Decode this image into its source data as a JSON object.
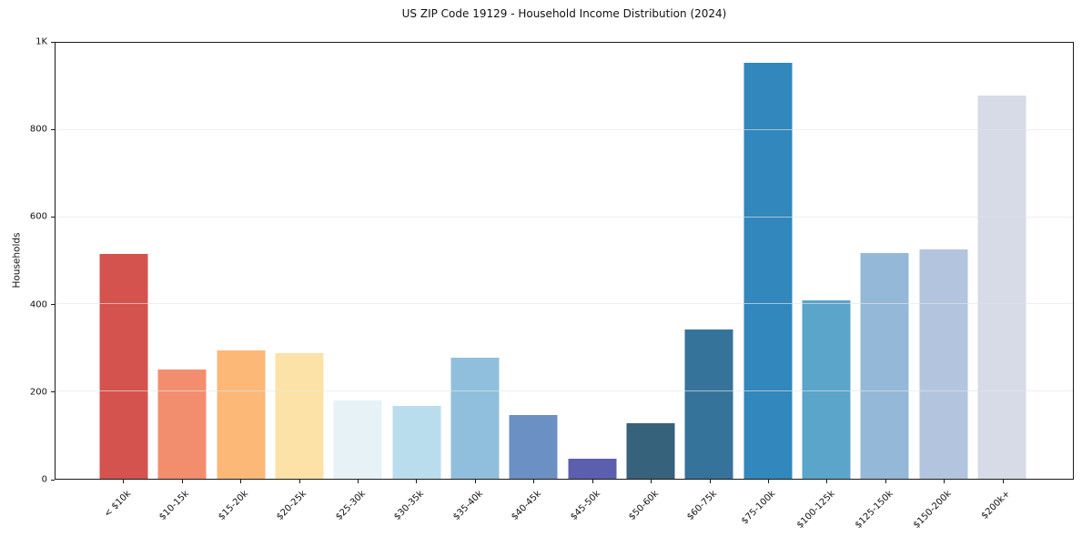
{
  "chart_data": {
    "type": "bar",
    "title": "US ZIP Code 19129 - Household Income Distribution (2024)",
    "xlabel": "",
    "ylabel": "Households",
    "ylim": [
      0,
      1000
    ],
    "grid": true,
    "legend": "none",
    "categories": [
      "< $10k",
      "$10-15k",
      "$15-20k",
      "$20-25k",
      "$25-30k",
      "$30-35k",
      "$35-40k",
      "$40-45k",
      "$45-50k",
      "$50-60k",
      "$60-75k",
      "$75-100k",
      "$100-125k",
      "$125-150k",
      "$150-200k",
      "$200k+"
    ],
    "values": [
      515,
      250,
      294,
      288,
      179,
      168,
      277,
      146,
      46,
      127,
      342,
      955,
      410,
      517,
      527,
      878
    ],
    "bar_colors": [
      "#d5534e",
      "#f28e6d",
      "#fbb877",
      "#fce2a6",
      "#e7f2f6",
      "#badded",
      "#90bfdd",
      "#6b90c4",
      "#5b5fae",
      "#36627b",
      "#35739b",
      "#3287bc",
      "#5ba4ca",
      "#94b9d8",
      "#b3c4df",
      "#d7dae7"
    ],
    "yticks": {
      "values": [
        0,
        200,
        400,
        600,
        800,
        1000
      ],
      "labels": [
        "0",
        "200",
        "400",
        "600",
        "800",
        "1K"
      ]
    }
  },
  "colors": {
    "axis_border": "#1a1a1a",
    "gridline": "#e5e5e5",
    "background": "#ffffff",
    "text": "#111111"
  }
}
